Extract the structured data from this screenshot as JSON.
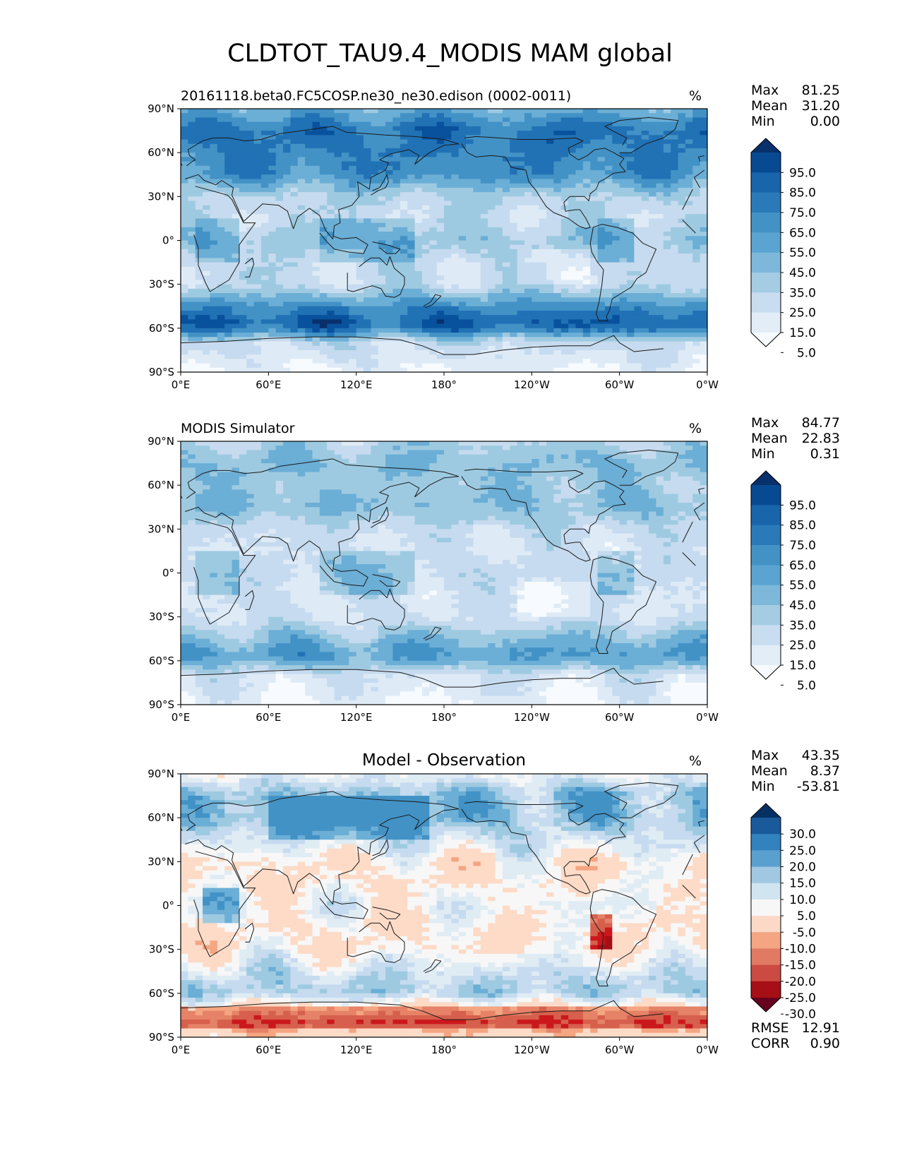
{
  "title": "CLDTOT_TAU9.4_MODIS MAM global",
  "axes": {
    "lon_ticks": [
      "0°E",
      "60°E",
      "120°E",
      "180°",
      "120°W",
      "60°W",
      "0°W"
    ],
    "lat_ticks": [
      "90°N",
      "60°N",
      "30°N",
      "0°",
      "30°S",
      "60°S",
      "90°S"
    ]
  },
  "panels": [
    {
      "id": "test",
      "left_title": "20161118.beta0.FC5COSP.ne30_ne30.edison (0002-0011)",
      "center_title": "",
      "units": "%",
      "stats": [
        {
          "label": "Max",
          "value": "81.25"
        },
        {
          "label": "Mean",
          "value": "31.20"
        },
        {
          "label": "Min",
          "value": "0.00"
        }
      ],
      "colorbar_labels": [
        "95.0",
        "85.0",
        "75.0",
        "65.0",
        "55.0",
        "45.0",
        "35.0",
        "25.0",
        "15.0",
        "5.0"
      ]
    },
    {
      "id": "reference",
      "left_title": "MODIS Simulator",
      "center_title": "",
      "units": "%",
      "stats": [
        {
          "label": "Max",
          "value": "84.77"
        },
        {
          "label": "Mean",
          "value": "22.83"
        },
        {
          "label": "Min",
          "value": "0.31"
        }
      ],
      "colorbar_labels": [
        "95.0",
        "85.0",
        "75.0",
        "65.0",
        "55.0",
        "45.0",
        "35.0",
        "25.0",
        "15.0",
        "5.0"
      ]
    },
    {
      "id": "difference",
      "left_title": "",
      "center_title": "Model - Observation",
      "units": "%",
      "stats": [
        {
          "label": "Max",
          "value": "43.35"
        },
        {
          "label": "Mean",
          "value": "8.37"
        },
        {
          "label": "Min",
          "value": "-53.81"
        }
      ],
      "extra_stats": [
        {
          "label": "RMSE",
          "value": "12.91"
        },
        {
          "label": "CORR",
          "value": "0.90"
        }
      ],
      "colorbar_labels": [
        "30.0",
        "25.0",
        "20.0",
        "15.0",
        "10.0",
        "5.0",
        "-5.0",
        "-10.0",
        "-15.0",
        "-20.0",
        "-25.0",
        "-30.0"
      ]
    }
  ],
  "colors": {
    "blues": [
      "#f7fbff",
      "#deebf7",
      "#c6dbef",
      "#9ecae1",
      "#6baed6",
      "#4292c6",
      "#2171b5",
      "#08519c",
      "#08306b"
    ],
    "diverging": [
      "#67001f",
      "#a50f15",
      "#cb181d",
      "#d6604d",
      "#e58267",
      "#f4a582",
      "#fddbc7",
      "#f7f7f7",
      "#e0ecf4",
      "#c6dbef",
      "#9ecae1",
      "#6baed6",
      "#4292c6",
      "#2166ac",
      "#053061"
    ],
    "coast": "#1a1a1a"
  },
  "chart_data": [
    {
      "type": "heatmap",
      "title": "20161118.beta0.FC5COSP.ne30_ne30.edison (0002-0011)",
      "units": "%",
      "xlim": [
        0,
        360
      ],
      "ylim": [
        -90,
        90
      ],
      "levels": [
        0,
        5,
        15,
        25,
        35,
        45,
        55,
        65,
        75,
        85,
        95,
        100
      ],
      "zonal_mean_profile": {
        "lat": [
          90,
          75,
          60,
          45,
          30,
          15,
          0,
          -15,
          -30,
          -45,
          -55,
          -60,
          -70,
          -90
        ],
        "value": [
          40,
          60,
          55,
          50,
          25,
          20,
          30,
          20,
          20,
          50,
          65,
          60,
          20,
          5
        ]
      },
      "stats": {
        "max": 81.25,
        "mean": 31.2,
        "min": 0.0
      }
    },
    {
      "type": "heatmap",
      "title": "MODIS Simulator",
      "units": "%",
      "xlim": [
        0,
        360
      ],
      "ylim": [
        -90,
        90
      ],
      "levels": [
        0,
        5,
        15,
        25,
        35,
        45,
        55,
        65,
        75,
        85,
        95,
        100
      ],
      "zonal_mean_profile": {
        "lat": [
          90,
          75,
          60,
          45,
          30,
          15,
          0,
          -15,
          -30,
          -45,
          -55,
          -60,
          -70,
          -90
        ],
        "value": [
          25,
          35,
          30,
          35,
          20,
          15,
          20,
          15,
          15,
          35,
          45,
          40,
          15,
          5
        ]
      },
      "stats": {
        "max": 84.77,
        "mean": 22.83,
        "min": 0.31
      }
    },
    {
      "type": "heatmap",
      "title": "Model - Observation",
      "units": "%",
      "xlim": [
        0,
        360
      ],
      "ylim": [
        -90,
        90
      ],
      "levels": [
        -100,
        -30,
        -25,
        -20,
        -15,
        -10,
        -5,
        5,
        10,
        15,
        20,
        25,
        30,
        100
      ],
      "zonal_mean_profile": {
        "lat": [
          90,
          75,
          60,
          45,
          30,
          15,
          0,
          -15,
          -30,
          -45,
          -55,
          -60,
          -70,
          -80,
          -90
        ],
        "value": [
          10,
          25,
          25,
          15,
          5,
          5,
          10,
          5,
          5,
          15,
          20,
          20,
          0,
          -10,
          0
        ]
      },
      "stats": {
        "max": 43.35,
        "mean": 8.37,
        "min": -53.81,
        "rmse": 12.91,
        "corr": 0.9
      }
    }
  ]
}
